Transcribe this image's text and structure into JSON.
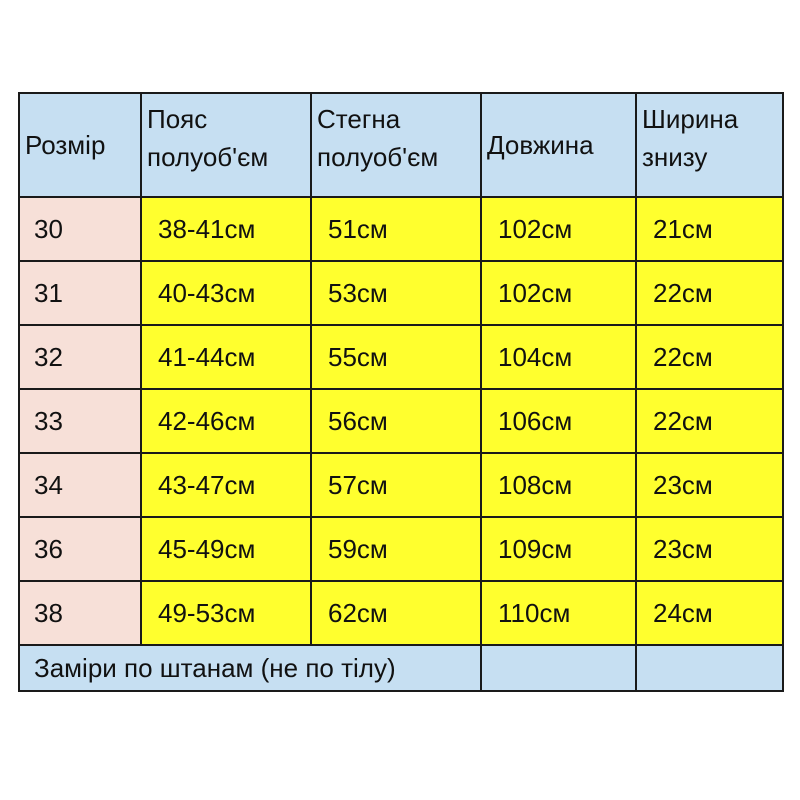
{
  "headers": [
    "Розмір",
    "Пояс полуоб'єм",
    "Стегна полуоб'єм",
    "Довжина",
    "Ширина знизу"
  ],
  "header_lines": [
    [
      "Розмір"
    ],
    [
      "Пояс",
      "полуоб'єм"
    ],
    [
      "Стегна",
      "полуоб'єм"
    ],
    [
      "Довжина"
    ],
    [
      "Ширина",
      "знизу"
    ]
  ],
  "rows": [
    [
      "30",
      "38-41см",
      "51см",
      "102см",
      "21см"
    ],
    [
      "31",
      "40-43см",
      "53см",
      "102см",
      "22см"
    ],
    [
      "32",
      "41-44см",
      "55см",
      "104см",
      "22см"
    ],
    [
      "33",
      "42-46см",
      "56см",
      "106см",
      "22см"
    ],
    [
      "34",
      "43-47см",
      "57см",
      "108см",
      "23см"
    ],
    [
      "36",
      "45-49см",
      "59см",
      "109см",
      "23см"
    ],
    [
      "38",
      "49-53см",
      "62см",
      "110см",
      "24см"
    ]
  ],
  "footer_note": "Заміри по штанам (не по тілу)",
  "colors": {
    "header": "#c6dff2",
    "size_column": "#f7e0d8",
    "values": "#ffff2e",
    "border": "#1a1a1a"
  }
}
